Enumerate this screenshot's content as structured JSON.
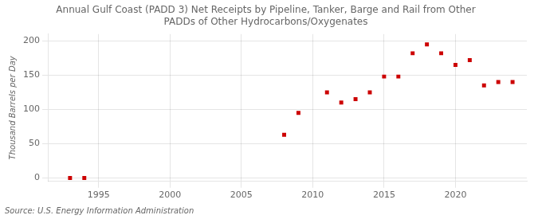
{
  "chart_data": {
    "type": "scatter",
    "title": "Annual Gulf Coast (PADD 3) Net Receipts by Pipeline, Tanker, Barge and Rail from Other\nPADDs of Other Hydrocarbons/Oxygenates",
    "ylabel": "Thousand Barrels per Day",
    "source": "Source: U.S. Energy Information Administration",
    "x": [
      1993,
      1994,
      2008,
      2009,
      2011,
      2012,
      2013,
      2014,
      2015,
      2016,
      2017,
      2018,
      2019,
      2020,
      2021,
      2022,
      2023,
      2024
    ],
    "values": [
      0,
      0,
      63,
      95,
      125,
      110,
      115,
      125,
      148,
      148,
      182,
      195,
      182,
      165,
      172,
      135,
      140,
      140
    ],
    "color": "#cc0000",
    "marker": "square",
    "xlim": [
      1991.5,
      2025
    ],
    "ylim": [
      -5,
      210
    ],
    "xticks": [
      1995,
      2000,
      2005,
      2010,
      2015,
      2020
    ],
    "yticks": [
      0,
      50,
      100,
      150,
      200
    ],
    "grid": true
  }
}
